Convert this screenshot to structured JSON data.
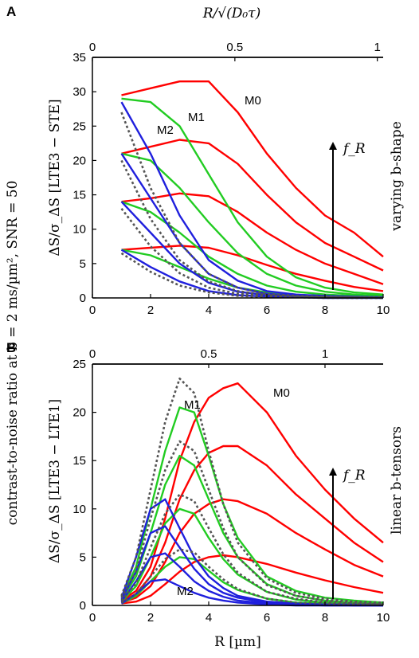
{
  "y_outer_label": "contrast-to-noise ratio at b = 2 ms/µm², SNR = 50",
  "colors": {
    "M0": "#ff0000",
    "M1": "#22cc22",
    "M2": "#1f1fdd",
    "ref": "#555555"
  },
  "chart_data": [
    {
      "type": "line",
      "panel_label": "A",
      "top_axis_label": "R/√(D₀τ)",
      "top_ticks": [
        "0",
        "0.5",
        "1"
      ],
      "top_tick_R": [
        0,
        4.9,
        9.8
      ],
      "xlabel": "",
      "ylabel": "ΔS/σ_ΔS [LTE3 − STE]",
      "right_label": "varying b-shape",
      "arrow_label": "f_R",
      "xlim": [
        0,
        10
      ],
      "ylim": [
        0,
        35
      ],
      "xticks": [
        0,
        2,
        4,
        6,
        8,
        10
      ],
      "yticks": [
        0,
        5,
        10,
        15,
        20,
        25,
        30,
        35
      ],
      "annotations": [
        "M0",
        "M1",
        "M2"
      ],
      "series": [
        {
          "group": "M0",
          "x": [
            1,
            2,
            3,
            4,
            5,
            6,
            7,
            8,
            9,
            10
          ],
          "y": [
            29.5,
            30.5,
            31.5,
            31.5,
            27,
            21,
            16,
            12,
            9.5,
            6
          ]
        },
        {
          "group": "M0",
          "x": [
            1,
            2,
            3,
            4,
            5,
            6,
            7,
            8,
            9,
            10
          ],
          "y": [
            21,
            22,
            23,
            22.5,
            19.5,
            15,
            11,
            8,
            6,
            4
          ]
        },
        {
          "group": "M0",
          "x": [
            1,
            2,
            3,
            4,
            5,
            6,
            7,
            8,
            9,
            10
          ],
          "y": [
            14,
            14.5,
            15.2,
            14.8,
            12.5,
            9.5,
            7,
            5,
            3.5,
            2
          ]
        },
        {
          "group": "M0",
          "x": [
            1,
            2,
            3,
            4,
            5,
            6,
            7,
            8,
            9,
            10
          ],
          "y": [
            7,
            7.3,
            7.6,
            7.3,
            6.2,
            4.8,
            3.5,
            2.5,
            1.6,
            1
          ]
        },
        {
          "group": "M1",
          "x": [
            1,
            2,
            3,
            4,
            5,
            6,
            7,
            8,
            9,
            10
          ],
          "y": [
            29,
            28.5,
            25,
            18,
            11,
            6,
            3,
            1.5,
            0.8,
            0.5
          ]
        },
        {
          "group": "M1",
          "x": [
            1,
            2,
            3,
            4,
            5,
            6,
            7,
            8,
            9,
            10
          ],
          "y": [
            21,
            20,
            16,
            11,
            6.5,
            3.5,
            1.8,
            0.9,
            0.5,
            0.3
          ]
        },
        {
          "group": "M1",
          "x": [
            1,
            2,
            3,
            4,
            5,
            6,
            7,
            8,
            9,
            10
          ],
          "y": [
            14,
            12.5,
            9.5,
            6,
            3.5,
            1.8,
            0.9,
            0.5,
            0.3,
            0.2
          ]
        },
        {
          "group": "M1",
          "x": [
            1,
            2,
            3,
            4,
            5,
            6,
            7,
            8,
            9,
            10
          ],
          "y": [
            7,
            6.2,
            4.5,
            2.8,
            1.5,
            0.8,
            0.4,
            0.2,
            0.1,
            0.1
          ]
        },
        {
          "group": "M2",
          "x": [
            1,
            2,
            3,
            4,
            5,
            6,
            7,
            8,
            9,
            10
          ],
          "y": [
            28.5,
            21,
            12,
            5.5,
            2.5,
            1,
            0.5,
            0.3,
            0.2,
            0.1
          ]
        },
        {
          "group": "M2",
          "x": [
            1,
            2,
            3,
            4,
            5,
            6,
            7,
            8,
            9,
            10
          ],
          "y": [
            21,
            14.5,
            8,
            3.5,
            1.5,
            0.6,
            0.3,
            0.2,
            0.1,
            0.1
          ]
        },
        {
          "group": "M2",
          "x": [
            1,
            2,
            3,
            4,
            5,
            6,
            7,
            8,
            9,
            10
          ],
          "y": [
            14,
            9.5,
            5,
            2.2,
            0.9,
            0.4,
            0.2,
            0.1,
            0.1,
            0
          ]
        },
        {
          "group": "M2",
          "x": [
            1,
            2,
            3,
            4,
            5,
            6,
            7,
            8,
            9,
            10
          ],
          "y": [
            7,
            4.5,
            2.4,
            1,
            0.4,
            0.2,
            0.1,
            0,
            0,
            0
          ]
        },
        {
          "group": "ref",
          "x": [
            1,
            2,
            3,
            4,
            5,
            6,
            7,
            8,
            9,
            10
          ],
          "y": [
            27,
            16,
            8,
            3.5,
            1.5,
            0.6,
            0.3,
            0.2,
            0.1,
            0.1
          ]
        },
        {
          "group": "ref",
          "x": [
            1,
            2,
            3,
            4,
            5,
            6,
            7,
            8,
            9,
            10
          ],
          "y": [
            20,
            11.5,
            5.5,
            2.4,
            1,
            0.4,
            0.2,
            0.1,
            0.1,
            0
          ]
        },
        {
          "group": "ref",
          "x": [
            1,
            2,
            3,
            4,
            5,
            6,
            7,
            8,
            9,
            10
          ],
          "y": [
            13,
            7.5,
            3.6,
            1.5,
            0.6,
            0.3,
            0.1,
            0.1,
            0,
            0
          ]
        },
        {
          "group": "ref",
          "x": [
            1,
            2,
            3,
            4,
            5,
            6,
            7,
            8,
            9,
            10
          ],
          "y": [
            6.5,
            3.8,
            1.8,
            0.8,
            0.3,
            0.1,
            0.1,
            0,
            0,
            0
          ]
        }
      ]
    },
    {
      "type": "line",
      "panel_label": "B",
      "top_axis_label": "",
      "top_ticks": [
        "0",
        "0.5",
        "1"
      ],
      "top_tick_R": [
        0,
        4.0,
        8.0
      ],
      "xlabel": "R [µm]",
      "ylabel": "ΔS/σ_ΔS [LTE3 − LTE1]",
      "right_label": "linear b-tensors",
      "arrow_label": "f_R",
      "xlim": [
        0,
        10
      ],
      "ylim": [
        0,
        25
      ],
      "xticks": [
        0,
        2,
        4,
        6,
        8,
        10
      ],
      "yticks": [
        0,
        5,
        10,
        15,
        20,
        25
      ],
      "annotations": [
        "M1",
        "M0",
        "M2"
      ],
      "series": [
        {
          "group": "M0",
          "x": [
            1,
            1.5,
            2,
            2.5,
            3,
            3.5,
            4,
            4.5,
            5,
            6,
            7,
            8,
            9,
            10
          ],
          "y": [
            0.5,
            1.5,
            4,
            9,
            15,
            19,
            21.5,
            22.5,
            23,
            20,
            15.5,
            12,
            9,
            6.5
          ]
        },
        {
          "group": "M0",
          "x": [
            1,
            1.5,
            2,
            2.5,
            3,
            3.5,
            4,
            4.5,
            5,
            6,
            7,
            8,
            9,
            10
          ],
          "y": [
            0.4,
            1.2,
            3,
            6.5,
            11,
            14,
            15.8,
            16.5,
            16.5,
            14.5,
            11.5,
            9,
            6.5,
            4.5
          ]
        },
        {
          "group": "M0",
          "x": [
            1,
            1.5,
            2,
            2.5,
            3,
            3.5,
            4,
            4.5,
            5,
            6,
            7,
            8,
            9,
            10
          ],
          "y": [
            0.3,
            0.8,
            2,
            4.5,
            7.5,
            9.5,
            10.5,
            11,
            10.8,
            9.5,
            7.5,
            5.8,
            4.2,
            3
          ]
        },
        {
          "group": "M0",
          "x": [
            1,
            1.5,
            2,
            2.5,
            3,
            3.5,
            4,
            4.5,
            5,
            6,
            7,
            8,
            9,
            10
          ],
          "y": [
            0.2,
            0.4,
            1,
            2.2,
            3.5,
            4.5,
            5,
            5.2,
            5,
            4.3,
            3.4,
            2.6,
            1.9,
            1.3
          ]
        },
        {
          "group": "M1",
          "x": [
            1,
            1.5,
            2,
            2.5,
            3,
            3.5,
            4,
            4.5,
            5,
            6,
            7,
            8,
            9,
            10
          ],
          "y": [
            0.8,
            4,
            10,
            16,
            20.5,
            20,
            15.5,
            10.5,
            7,
            3,
            1.5,
            0.8,
            0.5,
            0.3
          ]
        },
        {
          "group": "M1",
          "x": [
            1,
            1.5,
            2,
            2.5,
            3,
            3.5,
            4,
            4.5,
            5,
            6,
            7,
            8,
            9,
            10
          ],
          "y": [
            0.6,
            3,
            7.5,
            12.5,
            15.5,
            14.5,
            11,
            7.5,
            5,
            2.2,
            1,
            0.5,
            0.3,
            0.2
          ]
        },
        {
          "group": "M1",
          "x": [
            1,
            1.5,
            2,
            2.5,
            3,
            3.5,
            4,
            4.5,
            5,
            6,
            7,
            8,
            9,
            10
          ],
          "y": [
            0.4,
            2,
            5,
            8.5,
            10,
            9.5,
            7,
            4.8,
            3.2,
            1.4,
            0.6,
            0.3,
            0.2,
            0.1
          ]
        },
        {
          "group": "M1",
          "x": [
            1,
            1.5,
            2,
            2.5,
            3,
            3.5,
            4,
            4.5,
            5,
            6,
            7,
            8,
            9,
            10
          ],
          "y": [
            0.2,
            1,
            2.5,
            4,
            5,
            4.8,
            3.6,
            2.4,
            1.6,
            0.7,
            0.3,
            0.2,
            0.1,
            0.1
          ]
        },
        {
          "group": "M2",
          "x": [
            1,
            1.5,
            2,
            2.5,
            3,
            3.5,
            4,
            4.5,
            5,
            6,
            7,
            8,
            9,
            10
          ],
          "y": [
            0.8,
            5,
            10,
            11,
            8,
            5,
            3,
            1.8,
            1,
            0.4,
            0.2,
            0.1,
            0.1,
            0
          ]
        },
        {
          "group": "M2",
          "x": [
            1,
            1.5,
            2,
            2.5,
            3,
            3.5,
            4,
            4.5,
            5,
            6,
            7,
            8,
            9,
            10
          ],
          "y": [
            0.6,
            3.5,
            7.5,
            8.2,
            6,
            3.8,
            2.2,
            1.3,
            0.8,
            0.3,
            0.1,
            0.1,
            0,
            0
          ]
        },
        {
          "group": "M2",
          "x": [
            1,
            1.5,
            2,
            2.5,
            3,
            3.5,
            4,
            4.5,
            5,
            6,
            7,
            8,
            9,
            10
          ],
          "y": [
            0.4,
            2.5,
            5,
            5.4,
            4,
            2.5,
            1.5,
            0.9,
            0.5,
            0.2,
            0.1,
            0,
            0,
            0
          ]
        },
        {
          "group": "M2",
          "x": [
            1,
            1.5,
            2,
            2.5,
            3,
            3.5,
            4,
            4.5,
            5,
            6,
            7,
            8,
            9,
            10
          ],
          "y": [
            0.2,
            1.2,
            2.5,
            2.7,
            2,
            1.3,
            0.8,
            0.5,
            0.3,
            0.1,
            0,
            0,
            0,
            0
          ]
        },
        {
          "group": "ref",
          "x": [
            1,
            1.5,
            2,
            2.5,
            3,
            3.5,
            4,
            4.5,
            5,
            6,
            7,
            8,
            9,
            10
          ],
          "y": [
            1,
            5,
            12,
            19,
            23.5,
            22,
            16,
            10.5,
            6.5,
            2.8,
            1.3,
            0.7,
            0.4,
            0.3
          ]
        },
        {
          "group": "ref",
          "x": [
            1,
            1.5,
            2,
            2.5,
            3,
            3.5,
            4,
            4.5,
            5,
            6,
            7,
            8,
            9,
            10
          ],
          "y": [
            0.8,
            3.5,
            9,
            14,
            17,
            16,
            12,
            8,
            5,
            2.1,
            1,
            0.5,
            0.3,
            0.2
          ]
        },
        {
          "group": "ref",
          "x": [
            1,
            1.5,
            2,
            2.5,
            3,
            3.5,
            4,
            4.5,
            5,
            6,
            7,
            8,
            9,
            10
          ],
          "y": [
            0.5,
            2.3,
            6,
            9.5,
            11.5,
            10.8,
            8,
            5.3,
            3.4,
            1.4,
            0.7,
            0.3,
            0.2,
            0.1
          ]
        },
        {
          "group": "ref",
          "x": [
            1,
            1.5,
            2,
            2.5,
            3,
            3.5,
            4,
            4.5,
            5,
            6,
            7,
            8,
            9,
            10
          ],
          "y": [
            0.3,
            1.2,
            3,
            4.8,
            5.8,
            5.5,
            4,
            2.7,
            1.7,
            0.7,
            0.3,
            0.2,
            0.1,
            0.1
          ]
        }
      ]
    }
  ]
}
